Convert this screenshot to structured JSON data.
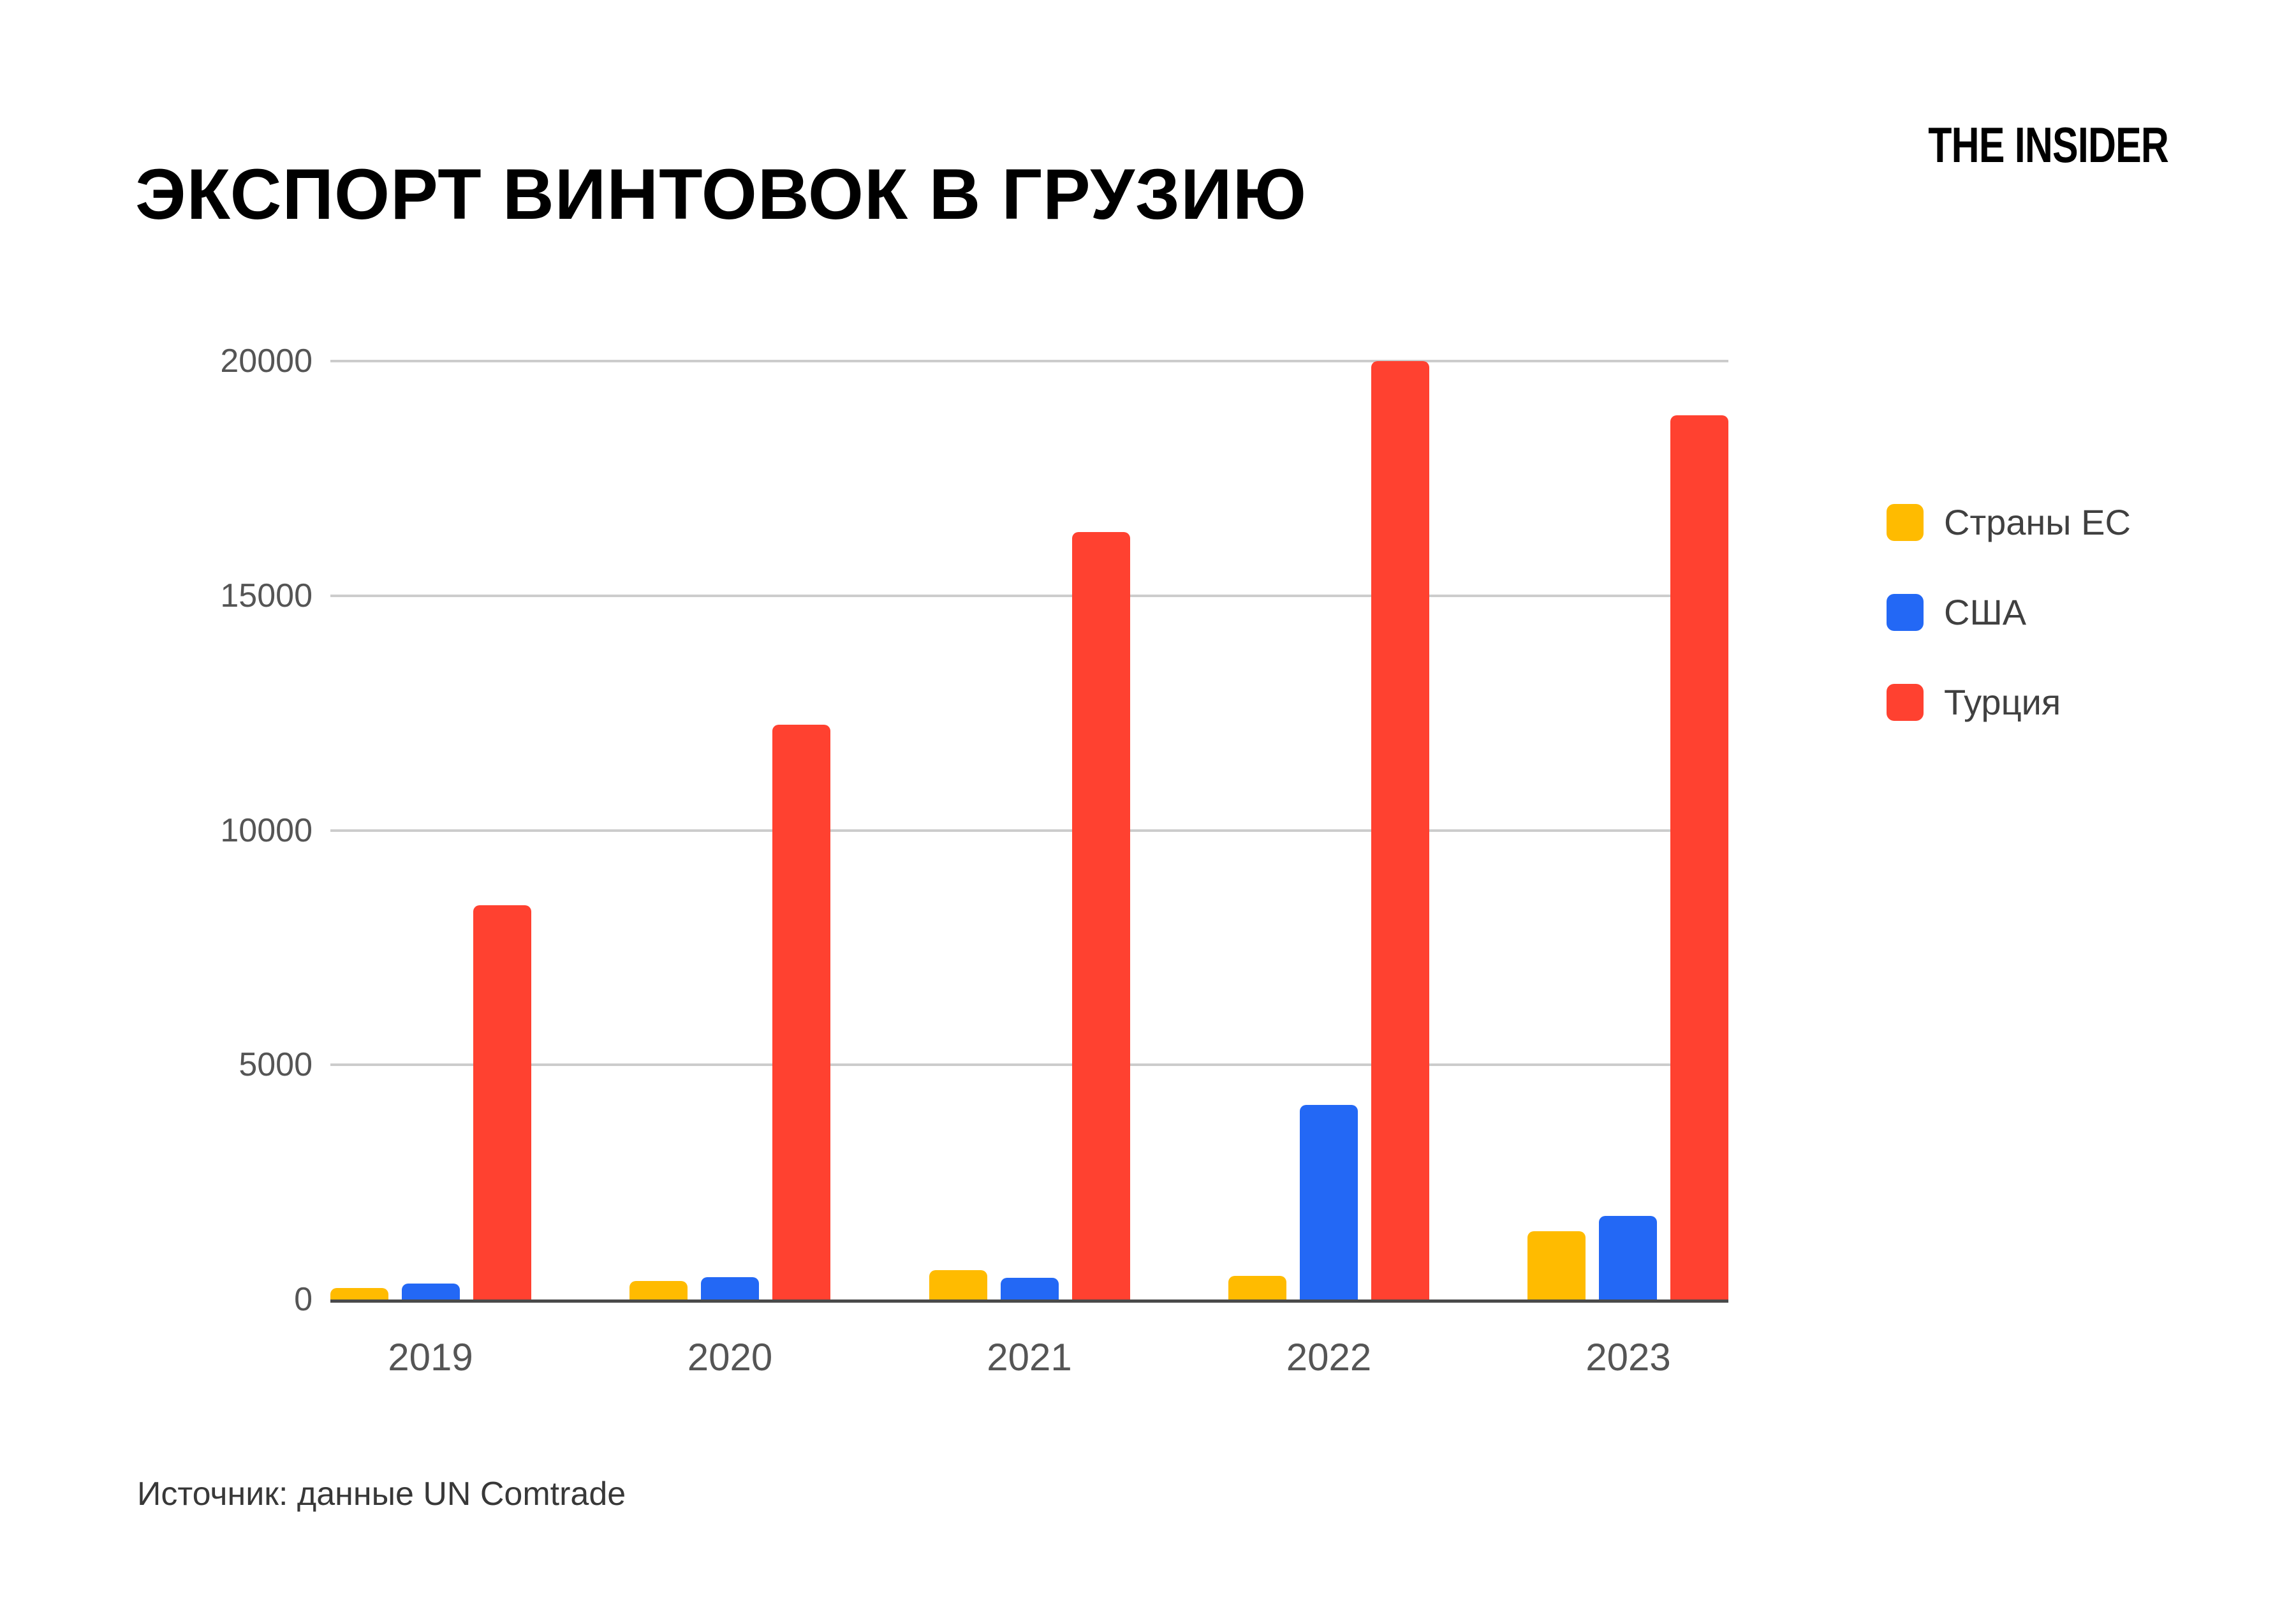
{
  "page": {
    "title": "ЭКСПОРТ ВИНТОВОК В ГРУЗИЮ",
    "logo": "THE INSIDER",
    "source": "Источник: данные UN Comtrade"
  },
  "colors": {
    "eu": "#FFBB00",
    "usa": "#2368F5",
    "turkey": "#FF4130",
    "gridline": "#CCCCCC",
    "axis": "#4A4A4A",
    "tick_label": "#555555",
    "legend_label": "#404040",
    "title": "#000000",
    "background": "#FFFFFF"
  },
  "legend": {
    "position": "right",
    "items": [
      {
        "key": "eu",
        "label": "Страны ЕС",
        "color": "#FFBB00"
      },
      {
        "key": "usa",
        "label": "США",
        "color": "#2368F5"
      },
      {
        "key": "turkey",
        "label": "Турция",
        "color": "#FF4130"
      }
    ]
  },
  "chart_data": {
    "type": "bar",
    "title": "ЭКСПОРТ ВИНТОВОК В ГРУЗИЮ",
    "xlabel": "",
    "ylabel": "",
    "categories": [
      "2019",
      "2020",
      "2021",
      "2022",
      "2023"
    ],
    "series": [
      {
        "key": "eu",
        "name": "Страны ЕС",
        "color": "#FFBB00",
        "values": [
          250,
          400,
          620,
          500,
          1450
        ]
      },
      {
        "key": "usa",
        "name": "США",
        "color": "#2368F5",
        "values": [
          340,
          475,
          460,
          4150,
          1780
        ]
      },
      {
        "key": "turkey",
        "name": "Турция",
        "color": "#FF4130",
        "values": [
          8400,
          12250,
          16350,
          20000,
          18850
        ]
      }
    ],
    "ylim": [
      0,
      20000
    ],
    "yticks": [
      0,
      5000,
      10000,
      15000,
      20000
    ],
    "grid": true,
    "legend_position": "right"
  }
}
